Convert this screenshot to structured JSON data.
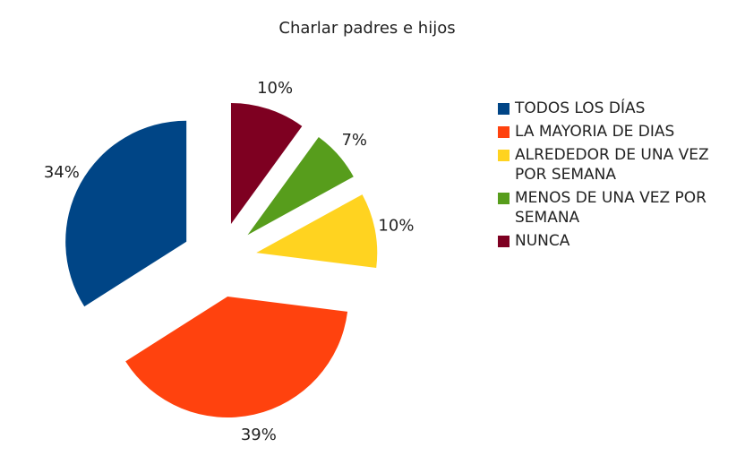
{
  "chart_data": {
    "type": "pie",
    "title": "Charlar padres e hijos",
    "categories": [
      "TODOS LOS DÍAS",
      "LA MAYORIA DE DIAS",
      "ALREDEDOR DE UNA VEZ POR SEMANA",
      "MENOS DE UNA VEZ POR SEMANA",
      "NUNCA"
    ],
    "values": [
      34,
      39,
      10,
      7,
      10
    ],
    "value_labels": [
      "34%",
      "39%",
      "10%",
      "7%",
      "10%"
    ],
    "colors": [
      "#004586",
      "#ff420e",
      "#ffd320",
      "#579d1c",
      "#7e0021"
    ],
    "legend": "right"
  }
}
